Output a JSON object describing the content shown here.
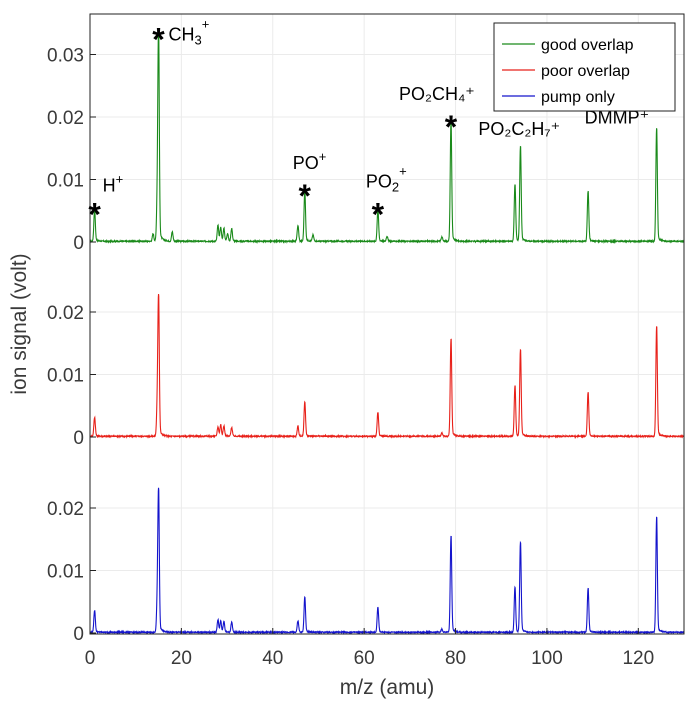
{
  "chart_data": {
    "type": "line",
    "xlabel": "m/z (amu)",
    "ylabel": "ion signal (volt)",
    "xlim": [
      0,
      130
    ],
    "x_ticks": [
      "0",
      "20",
      "40",
      "60",
      "80",
      "100",
      "120"
    ],
    "x_tick_values": [
      0,
      20,
      40,
      60,
      80,
      100,
      120
    ],
    "grid": true,
    "legend_position": "top-right",
    "panels": [
      {
        "name": "good-overlap-panel",
        "ylim": [
          0,
          0.036
        ],
        "y_ticks": [
          "0",
          "0.01",
          "0.02",
          "0.03"
        ],
        "y_tick_values": [
          0,
          0.01,
          0.02,
          0.03
        ]
      },
      {
        "name": "poor-overlap-panel",
        "ylim": [
          0,
          0.024
        ],
        "y_ticks": [
          "0",
          "0.01",
          "0.02"
        ],
        "y_tick_values": [
          0,
          0.01,
          0.02
        ]
      },
      {
        "name": "pump-only-panel",
        "ylim": [
          0,
          0.024
        ],
        "y_ticks": [
          "0",
          "0.01",
          "0.02"
        ],
        "y_tick_values": [
          0,
          0.01,
          0.02
        ]
      }
    ],
    "series": [
      {
        "name": "good overlap",
        "color": "#1a8a1a",
        "panel": 0,
        "peaks": [
          [
            1,
            0.005
          ],
          [
            15,
            0.033
          ],
          [
            14.7,
            0.0055
          ],
          [
            13.8,
            0.0012
          ],
          [
            18,
            0.0015
          ],
          [
            28,
            0.0025
          ],
          [
            28.6,
            0.0022
          ],
          [
            29.3,
            0.002
          ],
          [
            30.1,
            0.0012
          ],
          [
            31,
            0.002
          ],
          [
            45.5,
            0.0025
          ],
          [
            47,
            0.008
          ],
          [
            48.8,
            0.001
          ],
          [
            63,
            0.005
          ],
          [
            65,
            0.0008
          ],
          [
            77,
            0.0007
          ],
          [
            79,
            0.019
          ],
          [
            93,
            0.009
          ],
          [
            94.2,
            0.015
          ],
          [
            109,
            0.008
          ],
          [
            124,
            0.018
          ]
        ]
      },
      {
        "name": "poor overlap",
        "color": "#e8211a",
        "panel": 1,
        "peaks": [
          [
            1,
            0.003
          ],
          [
            15,
            0.022
          ],
          [
            14.7,
            0.004
          ],
          [
            28,
            0.0015
          ],
          [
            28.6,
            0.0018
          ],
          [
            29.3,
            0.0016
          ],
          [
            31,
            0.0014
          ],
          [
            45.5,
            0.0016
          ],
          [
            47,
            0.0055
          ],
          [
            63,
            0.0038
          ],
          [
            77,
            0.0005
          ],
          [
            79,
            0.0155
          ],
          [
            93,
            0.008
          ],
          [
            94.2,
            0.0138
          ],
          [
            109,
            0.007
          ],
          [
            124,
            0.0175
          ]
        ]
      },
      {
        "name": "pump only",
        "color": "#1414cc",
        "panel": 2,
        "peaks": [
          [
            1,
            0.0035
          ],
          [
            15,
            0.0222
          ],
          [
            14.7,
            0.0042
          ],
          [
            28,
            0.002
          ],
          [
            28.6,
            0.0018
          ],
          [
            29.3,
            0.0017
          ],
          [
            31,
            0.0016
          ],
          [
            45.5,
            0.0018
          ],
          [
            47,
            0.0056
          ],
          [
            63,
            0.004
          ],
          [
            77,
            0.0005
          ],
          [
            79,
            0.0153
          ],
          [
            93,
            0.0072
          ],
          [
            94.2,
            0.0143
          ],
          [
            109,
            0.007
          ],
          [
            124,
            0.0183
          ]
        ]
      }
    ],
    "annotations": [
      {
        "base": "H",
        "sup": "+",
        "asterisk": true,
        "x": 1,
        "y": 0.0055
      },
      {
        "base": "CH",
        "sub": "3",
        "sup": "+",
        "asterisk": true,
        "x": 15,
        "y": 0.0335
      },
      {
        "base": "PO",
        "sup": "+",
        "asterisk": true,
        "x": 47,
        "y": 0.0085
      },
      {
        "base": "PO",
        "sub": "2",
        "sup": "+",
        "asterisk": true,
        "x": 63,
        "y": 0.0055
      },
      {
        "text": "PO₂CH₄⁺",
        "asterisk": true,
        "x": 79,
        "y": 0.0195
      },
      {
        "text": "PO₂C₂H₇⁺",
        "asterisk": false,
        "x": 94.2,
        "y": 0.0155
      },
      {
        "text": "DMMP⁺",
        "asterisk": false,
        "x": 124,
        "y": 0.0185
      }
    ]
  }
}
